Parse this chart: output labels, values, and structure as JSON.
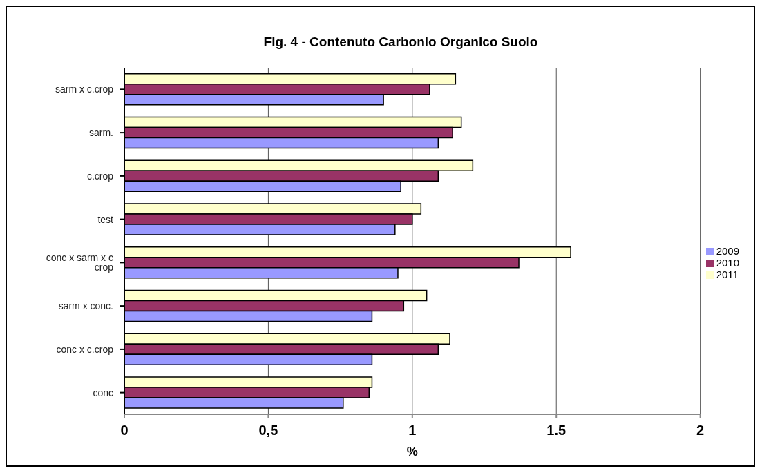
{
  "chart_data": {
    "type": "bar",
    "orientation": "horizontal",
    "title": "Fig. 4 - Contenuto Carbonio Organico Suolo",
    "xlabel": "%",
    "categories": [
      "sarm x c.crop",
      "sarm.",
      "c.crop",
      "test",
      "conc x sarm x c crop",
      "sarm  x conc.",
      "conc x c.crop",
      "conc"
    ],
    "series": [
      {
        "name": "2011",
        "color": "#ffffcc",
        "values": [
          1.15,
          1.17,
          1.21,
          1.03,
          1.55,
          1.05,
          1.13,
          0.86
        ]
      },
      {
        "name": "2010",
        "color": "#993366",
        "values": [
          1.06,
          1.14,
          1.09,
          1.0,
          1.37,
          0.97,
          1.09,
          0.85
        ]
      },
      {
        "name": "2009",
        "color": "#9999ff",
        "values": [
          0.9,
          1.09,
          0.96,
          0.94,
          0.95,
          0.86,
          0.86,
          0.76
        ]
      }
    ],
    "xlim": [
      0,
      2
    ],
    "xticks": [
      0,
      {
        "value": 0.5,
        "label": "0,5"
      },
      1,
      1.5,
      2
    ],
    "grid": "x",
    "legend": "right"
  }
}
